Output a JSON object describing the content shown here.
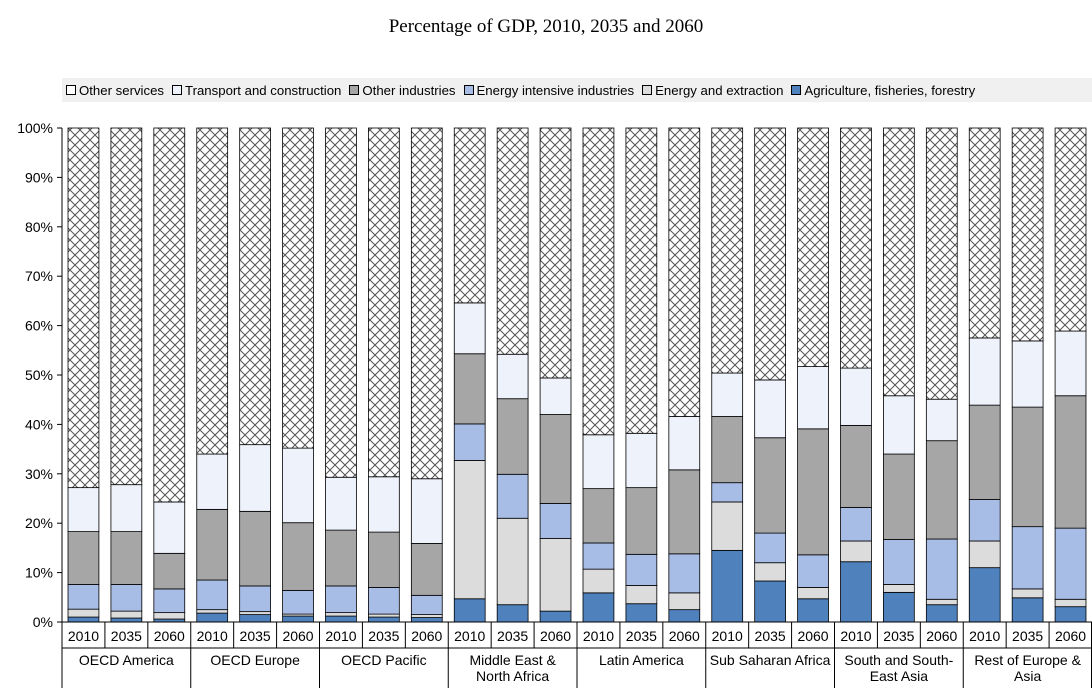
{
  "chart_data": {
    "type": "bar",
    "stacked": true,
    "title": "Percentage of GDP, 2010, 2035 and 2060",
    "legend_position": "top",
    "ylim": [
      0,
      100
    ],
    "yticks": [
      "0%",
      "10%",
      "20%",
      "30%",
      "40%",
      "50%",
      "60%",
      "70%",
      "80%",
      "90%",
      "100%"
    ],
    "groups": [
      {
        "name": "OECD America",
        "lines": [
          "OECD America"
        ],
        "years": [
          "2010",
          "2035",
          "2060"
        ]
      },
      {
        "name": "OECD Europe",
        "lines": [
          "OECD Europe"
        ],
        "years": [
          "2010",
          "2035",
          "2060"
        ]
      },
      {
        "name": "OECD Pacific",
        "lines": [
          "OECD Pacific"
        ],
        "years": [
          "2010",
          "2035",
          "2060"
        ]
      },
      {
        "name": "Middle East & North Africa",
        "lines": [
          "Middle East &",
          "North Africa"
        ],
        "years": [
          "2010",
          "2035",
          "2060"
        ]
      },
      {
        "name": "Latin America",
        "lines": [
          "Latin America"
        ],
        "years": [
          "2010",
          "2035",
          "2060"
        ]
      },
      {
        "name": "Sub Saharan Africa",
        "lines": [
          "Sub Saharan Africa"
        ],
        "years": [
          "2010",
          "2035",
          "2060"
        ]
      },
      {
        "name": "South and South-East Asia",
        "lines": [
          "South and South-",
          "East Asia"
        ],
        "years": [
          "2010",
          "2035",
          "2060"
        ]
      },
      {
        "name": "Rest of Europe & Asia",
        "lines": [
          "Rest of Europe &",
          "Asia"
        ],
        "years": [
          "2010",
          "2035",
          "2060"
        ]
      }
    ],
    "series": [
      {
        "name": "Agriculture, fisheries, forestry",
        "color": "#4f81bd",
        "values": [
          1.0,
          0.8,
          0.6,
          1.8,
          1.5,
          1.2,
          1.2,
          1.0,
          0.9,
          4.7,
          3.5,
          2.2,
          5.9,
          3.7,
          2.5,
          14.5,
          8.3,
          4.7,
          12.2,
          6.0,
          3.5,
          11.0,
          4.9,
          3.1
        ]
      },
      {
        "name": "Energy and extraction",
        "color": "#dcdcdc",
        "values": [
          1.6,
          1.4,
          1.3,
          0.7,
          0.6,
          0.4,
          0.7,
          0.6,
          0.6,
          28.0,
          17.5,
          14.7,
          4.8,
          3.7,
          3.4,
          9.8,
          3.7,
          2.3,
          4.2,
          1.6,
          1.1,
          5.4,
          1.8,
          1.5
        ]
      },
      {
        "name": "Energy intensive industries",
        "color": "#a8bde6",
        "values": [
          5.0,
          5.4,
          4.8,
          6.0,
          5.2,
          4.8,
          5.4,
          5.4,
          3.9,
          7.4,
          8.9,
          7.1,
          5.3,
          6.3,
          7.9,
          3.9,
          6.0,
          6.6,
          6.8,
          9.1,
          12.2,
          8.4,
          12.6,
          14.4
        ]
      },
      {
        "name": "Other industries",
        "color": "#a6a6a6",
        "values": [
          10.7,
          10.7,
          7.2,
          14.3,
          15.1,
          13.7,
          11.3,
          11.2,
          10.5,
          14.2,
          15.3,
          18.0,
          11.0,
          13.5,
          17.0,
          13.4,
          19.3,
          25.5,
          16.6,
          17.3,
          19.9,
          19.1,
          24.2,
          26.8
        ]
      },
      {
        "name": "Transport and construction",
        "color": "#eef2fa",
        "values": [
          8.9,
          9.5,
          10.4,
          11.2,
          13.5,
          15.1,
          10.7,
          11.2,
          13.1,
          10.3,
          9.0,
          7.4,
          10.9,
          11.0,
          10.8,
          8.8,
          11.7,
          12.6,
          11.6,
          11.8,
          8.4,
          13.6,
          13.4,
          13.1
        ]
      },
      {
        "name": "Other services",
        "color": "#ffffff",
        "pattern": "crosshatch",
        "values": [
          72.8,
          72.2,
          75.7,
          66.0,
          64.1,
          64.8,
          70.7,
          70.6,
          71.0,
          35.4,
          45.8,
          50.6,
          62.1,
          61.8,
          58.4,
          49.6,
          51.0,
          48.3,
          48.6,
          54.2,
          54.9,
          42.5,
          43.1,
          41.1
        ]
      }
    ],
    "legend_order": [
      "Other services",
      "Transport and construction",
      "Other industries",
      "Energy intensive industries",
      "Energy and extraction",
      "Agriculture, fisheries, forestry"
    ]
  }
}
